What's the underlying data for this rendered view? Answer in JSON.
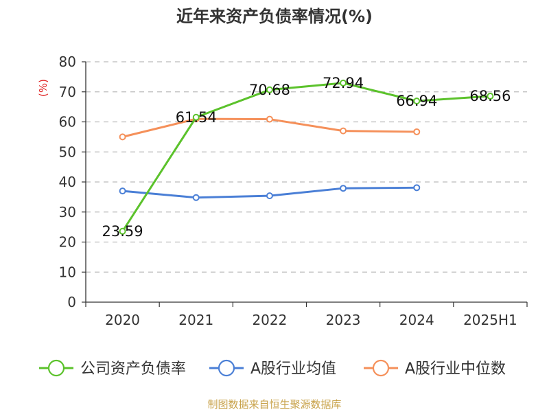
{
  "chart_data": {
    "type": "line",
    "title": "近年来资产负债率情况(%)",
    "ylabel": "(%)",
    "xlabel": "",
    "categories": [
      "2020",
      "2021",
      "2022",
      "2023",
      "2024",
      "2025H1"
    ],
    "ylim": [
      0,
      80
    ],
    "yticks": [
      0,
      10,
      20,
      30,
      40,
      50,
      60,
      70,
      80
    ],
    "grid": true,
    "legend_position": "bottom",
    "series": [
      {
        "name": "公司资产负债率",
        "color": "#5bc22b",
        "values": [
          23.59,
          61.54,
          70.68,
          72.94,
          66.94,
          68.56
        ],
        "labels": [
          "23.59",
          "61.54",
          "70.68",
          "72.94",
          "66.94",
          "68.56"
        ]
      },
      {
        "name": "A股行业均值",
        "color": "#4a7fd6",
        "values": [
          37.0,
          34.8,
          35.4,
          37.9,
          38.1,
          null
        ]
      },
      {
        "name": "A股行业中位数",
        "color": "#f5905a",
        "values": [
          55.0,
          61.0,
          60.9,
          57.0,
          56.7,
          null
        ]
      }
    ],
    "source": "制图数据来自恒生聚源数据库"
  }
}
